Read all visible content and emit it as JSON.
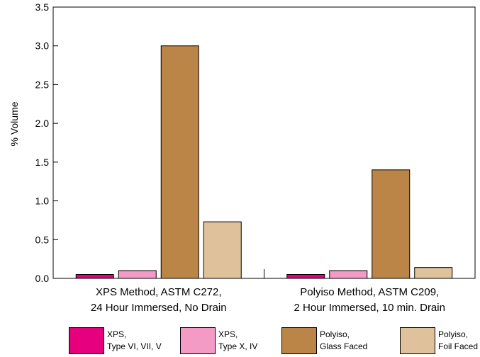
{
  "chart_data": {
    "type": "bar",
    "title": "",
    "xlabel": "",
    "ylabel": "% Volume",
    "ylim": [
      0,
      3.5
    ],
    "yticks": [
      "0.0",
      "0.5",
      "1.0",
      "1.5",
      "2.0",
      "2.5",
      "3.0",
      "3.5"
    ],
    "grid": false,
    "legend_position": "bottom",
    "categories": [
      {
        "line1": "XPS Method,  ASTM C272,",
        "line2": "24 Hour Immersed, No Drain"
      },
      {
        "line1": "Polyiso Method,  ASTM C209,",
        "line2": "2 Hour Immersed, 10 min. Drain"
      }
    ],
    "series": [
      {
        "name": "XPS, Type VI, VII, V",
        "legend_line1": "XPS,",
        "legend_line2": "Type VI, VII, V",
        "color": "#e6007e",
        "values": [
          0.05,
          0.05
        ]
      },
      {
        "name": "XPS, Type X, IV",
        "legend_line1": "XPS,",
        "legend_line2": "Type X, IV",
        "color": "#f39ac5",
        "values": [
          0.1,
          0.1
        ]
      },
      {
        "name": "Polyiso, Glass Faced",
        "legend_line1": "Polyiso,",
        "legend_line2": "Glass Faced",
        "color": "#ba8547",
        "values": [
          3.0,
          1.4
        ]
      },
      {
        "name": "Polyiso, Foil Faced",
        "legend_line1": "Polyiso,",
        "legend_line2": "Foil Faced",
        "color": "#dfc29b",
        "values": [
          0.73,
          0.14
        ]
      }
    ]
  }
}
